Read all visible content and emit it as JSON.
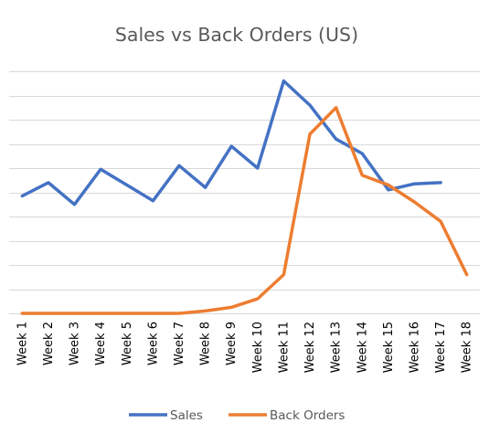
{
  "chart_data": {
    "type": "line",
    "title": "Sales vs Back Orders (US)",
    "xlabel": "",
    "ylabel": "",
    "categories": [
      "Week 1",
      "Week 2",
      "Week 3",
      "Week 4",
      "Week 5",
      "Week 6",
      "Week 7",
      "Week 8",
      "Week 9",
      "Week 10",
      "Week 11",
      "Week 12",
      "Week 13",
      "Week 14",
      "Week 15",
      "Week 16",
      "Week 17",
      "Week 18"
    ],
    "ylim": [
      0,
      10
    ],
    "y_axis_labels_shown": false,
    "grid": true,
    "legend_placement": "bottom",
    "series": [
      {
        "name": "Sales",
        "color": "#4472C4",
        "values": [
          4.85,
          5.4,
          4.5,
          5.95,
          5.3,
          4.65,
          6.1,
          5.2,
          6.9,
          6.0,
          9.6,
          8.6,
          7.2,
          6.6,
          5.1,
          5.35,
          5.4,
          null
        ]
      },
      {
        "name": "Back Orders",
        "color": "#ED7D31",
        "values": [
          0,
          0,
          0,
          0,
          0,
          0,
          0,
          0.1,
          0.25,
          0.6,
          1.6,
          7.4,
          8.5,
          5.7,
          5.3,
          4.6,
          3.8,
          1.6
        ]
      }
    ]
  }
}
